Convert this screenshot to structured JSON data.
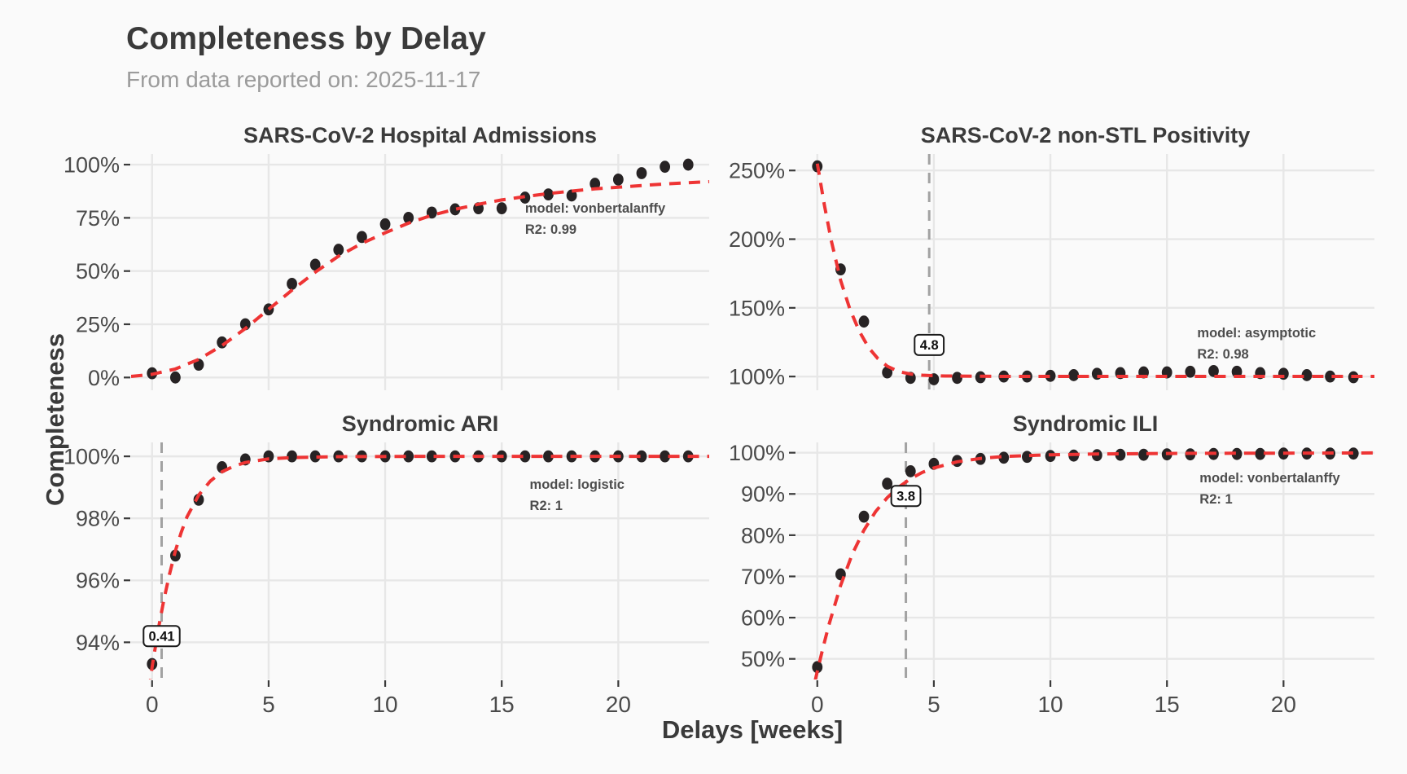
{
  "header": {
    "title": "Completeness by Delay",
    "subtitle": "From data reported on: 2025-11-17"
  },
  "axes": {
    "x_label": "Delays [weeks]",
    "y_label": "Completeness",
    "xlim": [
      -0.9,
      23.9
    ],
    "x_ticks": [
      0,
      5,
      10,
      15,
      20
    ]
  },
  "colors": {
    "background": "#fafafa",
    "gridline": "#e7e7e7",
    "point": "#272324",
    "fit_line": "#ee3434",
    "vline": "#a2a2a2",
    "tick_text": "#4a4a4a",
    "panel_title_text": "#3b3b3b",
    "annotation_text": "#4d4d4d",
    "vline_label_text": "#111111"
  },
  "chart_data": [
    {
      "type": "scatter",
      "title": "SARS-CoV-2 Hospital Admissions",
      "annotation": {
        "model_label": "model: vonbertalanffy",
        "r2_label": "R2: 0.99",
        "x": 16.0,
        "y": 77.5
      },
      "ylim": [
        -6,
        105
      ],
      "yticks": {
        "values": [
          0,
          25,
          50,
          75,
          100
        ],
        "labels": [
          "0%",
          "25%",
          "50%",
          "75%",
          "100%"
        ]
      },
      "x": [
        0,
        1,
        2,
        3,
        4,
        5,
        6,
        7,
        8,
        9,
        10,
        11,
        12,
        13,
        14,
        15,
        16,
        17,
        18,
        19,
        20,
        21,
        22,
        23
      ],
      "values": [
        2,
        0,
        6,
        16.5,
        25,
        32,
        44,
        53,
        60,
        66,
        72,
        75,
        77.5,
        79,
        79.5,
        79.5,
        84.5,
        86,
        85.5,
        91,
        93,
        96,
        99,
        100
      ],
      "fit": {
        "x": [
          -0.9,
          0,
          1,
          2,
          3,
          4,
          5,
          6,
          7,
          8,
          9,
          10,
          11,
          12,
          13,
          14,
          15,
          16,
          17,
          18,
          19,
          20,
          21,
          22,
          23,
          23.9
        ],
        "y": [
          0.5,
          1.5,
          4,
          8.5,
          15,
          23,
          32,
          41,
          49.5,
          57,
          63,
          68,
          72.5,
          76.2,
          79,
          81.4,
          83.4,
          85,
          86.4,
          87.6,
          88.6,
          89.4,
          90.2,
          90.9,
          91.5,
          92
        ]
      },
      "vline": null
    },
    {
      "type": "scatter",
      "title": "SARS-CoV-2 non-STL Positivity",
      "annotation": {
        "model_label": "model: asymptotic",
        "r2_label": "R2: 0.98",
        "x": 16.3,
        "y": 128.5
      },
      "ylim": [
        90,
        262
      ],
      "yticks": {
        "values": [
          100,
          150,
          200,
          250
        ],
        "labels": [
          "100%",
          "150%",
          "200%",
          "250%"
        ]
      },
      "x": [
        0,
        1,
        2,
        3,
        4,
        5,
        6,
        7,
        8,
        9,
        10,
        11,
        12,
        13,
        14,
        15,
        16,
        17,
        18,
        19,
        20,
        21,
        22,
        23
      ],
      "values": [
        253,
        178,
        140,
        103,
        99,
        98,
        99,
        99.5,
        100,
        100,
        100.5,
        101,
        102,
        102.5,
        103,
        103,
        103.5,
        104,
        103.5,
        102.5,
        102,
        101,
        100,
        99.5
      ],
      "fit": {
        "x": [
          0,
          0.3,
          0.6,
          1,
          1.4,
          1.8,
          2.2,
          2.6,
          3,
          3.5,
          4,
          4.5,
          5,
          5.5,
          6,
          7,
          8,
          10,
          12,
          14,
          16,
          18,
          20,
          22,
          23.9
        ],
        "y": [
          255,
          225,
          199,
          170,
          149,
          133,
          121,
          113,
          107.5,
          103.5,
          101.8,
          101,
          100.6,
          100.4,
          100.3,
          100.2,
          100.1,
          100.1,
          100.1,
          100.1,
          100.1,
          100.1,
          100.1,
          100.1,
          100.1
        ]
      },
      "vline": {
        "x": 4.8,
        "label": "4.8",
        "label_y": 123
      }
    },
    {
      "type": "scatter",
      "title": "Syndromic ARI",
      "annotation": {
        "model_label": "model: logistic",
        "r2_label": "R2: 1",
        "x": 16.2,
        "y": 98.95
      },
      "ylim": [
        92.8,
        100.45
      ],
      "yticks": {
        "values": [
          94,
          96,
          98,
          100
        ],
        "labels": [
          "94%",
          "96%",
          "98%",
          "100%"
        ]
      },
      "x": [
        0,
        1,
        2,
        3,
        4,
        5,
        6,
        7,
        8,
        9,
        10,
        11,
        12,
        13,
        14,
        15,
        16,
        17,
        18,
        19,
        20,
        21,
        22,
        23
      ],
      "values": [
        93.3,
        96.8,
        98.6,
        99.65,
        99.9,
        100,
        100,
        100,
        100,
        100,
        100,
        100,
        100,
        100,
        100,
        100,
        100,
        100,
        100,
        100,
        100,
        100,
        100,
        100
      ],
      "fit": {
        "x": [
          -0.35,
          -0.1,
          0,
          0.25,
          0.5,
          0.75,
          1,
          1.25,
          1.5,
          2,
          2.5,
          3,
          3.5,
          4,
          5,
          6,
          8,
          12,
          16,
          20,
          23.9
        ],
        "y": [
          91.2,
          92.6,
          93.2,
          94.35,
          95.35,
          96.2,
          96.95,
          97.55,
          98.05,
          98.75,
          99.2,
          99.5,
          99.68,
          99.8,
          99.92,
          99.96,
          99.99,
          100,
          100,
          100,
          100
        ]
      },
      "vline": {
        "x": 0.41,
        "label": "0.41",
        "label_y": 94.2
      }
    },
    {
      "type": "scatter",
      "title": "Syndromic ILI",
      "annotation": {
        "model_label": "model: vonbertalanffy",
        "r2_label": "R2: 1",
        "x": 16.4,
        "y": 92.8
      },
      "ylim": [
        45,
        102.5
      ],
      "yticks": {
        "values": [
          50,
          60,
          70,
          80,
          90,
          100
        ],
        "labels": [
          "50%",
          "60%",
          "70%",
          "80%",
          "90%",
          "100%"
        ]
      },
      "x": [
        0,
        1,
        2,
        3,
        4,
        5,
        6,
        7,
        8,
        9,
        10,
        11,
        12,
        13,
        14,
        15,
        16,
        17,
        18,
        19,
        20,
        21,
        22,
        23
      ],
      "values": [
        48,
        70.5,
        84.5,
        92.5,
        95.5,
        97.3,
        98,
        98.5,
        98.8,
        99,
        99.2,
        99.3,
        99.4,
        99.5,
        99.5,
        99.6,
        99.6,
        99.7,
        99.7,
        99.7,
        99.8,
        99.8,
        99.8,
        99.8
      ],
      "fit": {
        "x": [
          -0.1,
          0,
          0.25,
          0.5,
          1,
          1.5,
          2,
          2.5,
          3,
          3.5,
          4,
          4.5,
          5,
          6,
          7,
          8,
          10,
          12,
          16,
          20,
          23.9
        ],
        "y": [
          44.5,
          47,
          52.8,
          58.3,
          67.8,
          75.4,
          81.2,
          85.7,
          89.1,
          91.7,
          93.7,
          95.2,
          96.3,
          97.8,
          98.6,
          99.1,
          99.5,
          99.7,
          99.85,
          99.9,
          99.95
        ]
      },
      "vline": {
        "x": 3.8,
        "label": "3.8",
        "label_y": 89.5
      }
    }
  ]
}
